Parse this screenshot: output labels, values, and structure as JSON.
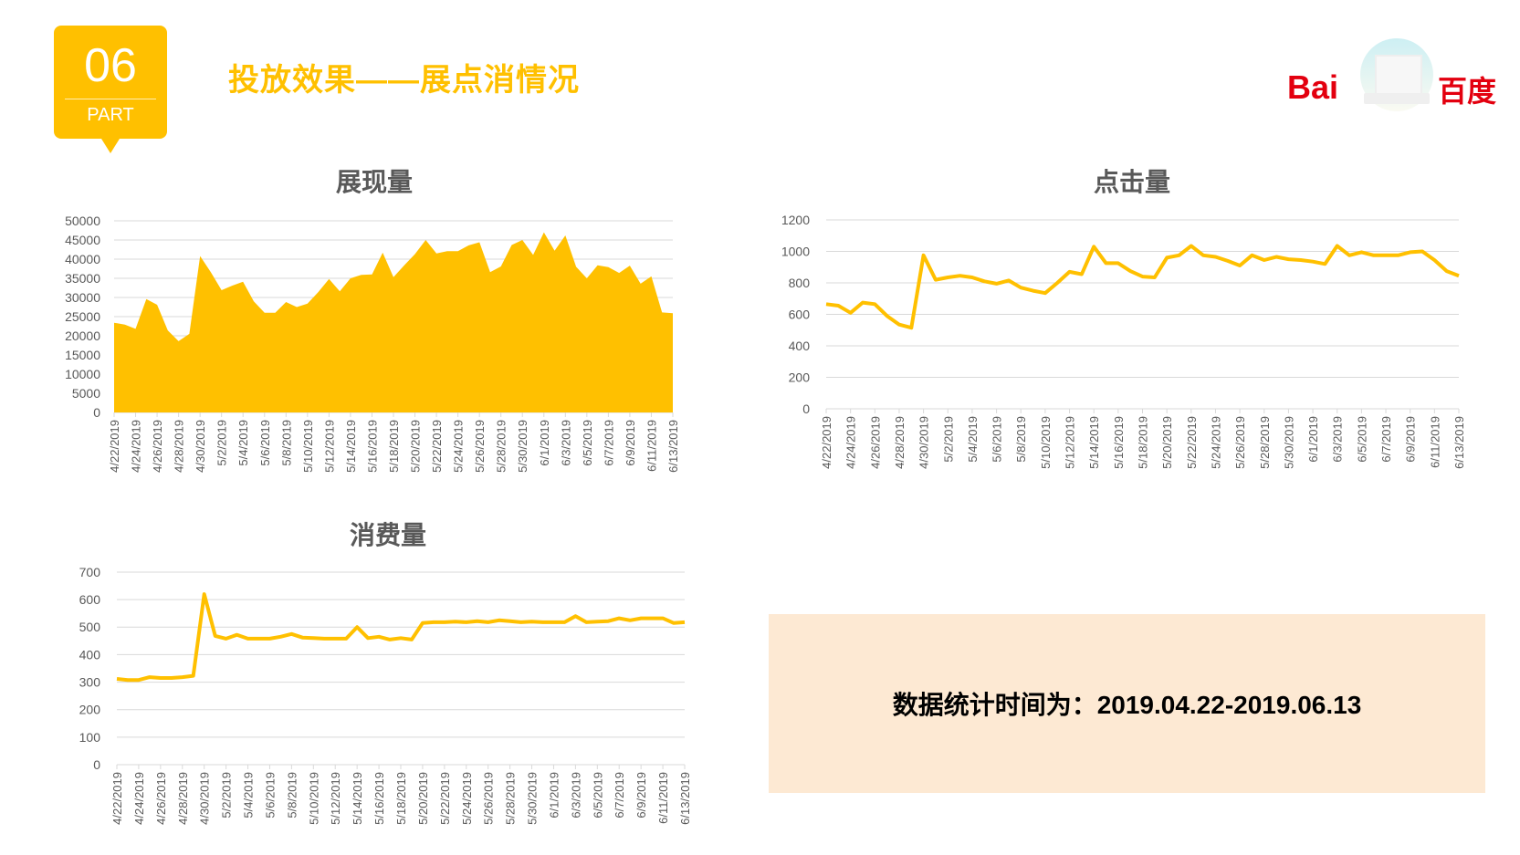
{
  "header": {
    "part_number": "06",
    "part_label": "PART",
    "title": "投放效果——展点消情况",
    "logo_latin": "Bai",
    "logo_chinese": "百度",
    "accent_color": "#FFC000",
    "logo_color": "#E3000F"
  },
  "info_box": {
    "text": "数据统计时间为：2019.04.22-2019.06.13",
    "background": "#FDE9D3"
  },
  "chart_data": [
    {
      "type": "area",
      "title": "展现量",
      "xlabel": "",
      "ylabel": "",
      "ylim": [
        0,
        50000
      ],
      "yticks": [
        0,
        5000,
        10000,
        15000,
        20000,
        25000,
        30000,
        35000,
        40000,
        45000,
        50000
      ],
      "grid": true,
      "color": "#FFC000",
      "x_tick_labels": [
        "4/22/2019",
        "4/24/2019",
        "4/26/2019",
        "4/28/2019",
        "4/30/2019",
        "5/2/2019",
        "5/4/2019",
        "5/6/2019",
        "5/8/2019",
        "5/10/2019",
        "5/12/2019",
        "5/14/2019",
        "5/16/2019",
        "5/18/2019",
        "5/20/2019",
        "5/22/2019",
        "5/24/2019",
        "5/26/2019",
        "5/28/2019",
        "5/30/2019",
        "6/1/2019",
        "6/3/2019",
        "6/5/2019",
        "6/7/2019",
        "6/9/2019",
        "6/11/2019",
        "6/13/2019"
      ],
      "x": [
        "4/22",
        "4/23",
        "4/24",
        "4/25",
        "4/26",
        "4/27",
        "4/28",
        "4/29",
        "4/30",
        "5/1",
        "5/2",
        "5/3",
        "5/4",
        "5/5",
        "5/6",
        "5/7",
        "5/8",
        "5/9",
        "5/10",
        "5/11",
        "5/12",
        "5/13",
        "5/14",
        "5/15",
        "5/16",
        "5/17",
        "5/18",
        "5/19",
        "5/20",
        "5/21",
        "5/22",
        "5/23",
        "5/24",
        "5/25",
        "5/26",
        "5/27",
        "5/28",
        "5/29",
        "5/30",
        "5/31",
        "6/1",
        "6/2",
        "6/3",
        "6/4",
        "6/5",
        "6/6",
        "6/7",
        "6/8",
        "6/9",
        "6/10",
        "6/11",
        "6/12",
        "6/13"
      ],
      "values": [
        23400,
        22900,
        21800,
        29600,
        28100,
        21400,
        18600,
        20500,
        40800,
        36600,
        31900,
        33100,
        34100,
        29000,
        26000,
        26000,
        28800,
        27500,
        28400,
        31400,
        34800,
        31600,
        35000,
        35900,
        36000,
        41700,
        35300,
        38400,
        41300,
        45000,
        41500,
        42100,
        42100,
        43600,
        44400,
        36600,
        38100,
        43700,
        45000,
        41100,
        47000,
        42200,
        46200,
        38000,
        35000,
        38400,
        37900,
        36400,
        38300,
        33600,
        35500,
        26100,
        25900
      ]
    },
    {
      "type": "line",
      "title": "点击量",
      "xlabel": "",
      "ylabel": "",
      "ylim": [
        0,
        1200
      ],
      "yticks": [
        0,
        200,
        400,
        600,
        800,
        1000,
        1200
      ],
      "grid": true,
      "color": "#FFC000",
      "x_tick_labels": [
        "4/22/2019",
        "4/24/2019",
        "4/26/2019",
        "4/28/2019",
        "4/30/2019",
        "5/2/2019",
        "5/4/2019",
        "5/6/2019",
        "5/8/2019",
        "5/10/2019",
        "5/12/2019",
        "5/14/2019",
        "5/16/2019",
        "5/18/2019",
        "5/20/2019",
        "5/22/2019",
        "5/24/2019",
        "5/26/2019",
        "5/28/2019",
        "5/30/2019",
        "6/1/2019",
        "6/3/2019",
        "6/5/2019",
        "6/7/2019",
        "6/9/2019",
        "6/11/2019",
        "6/13/2019"
      ],
      "values": [
        665,
        655,
        610,
        675,
        665,
        590,
        535,
        515,
        975,
        820,
        835,
        845,
        835,
        810,
        795,
        815,
        770,
        750,
        735,
        800,
        870,
        855,
        1030,
        925,
        925,
        875,
        840,
        835,
        960,
        975,
        1035,
        975,
        965,
        940,
        910,
        975,
        945,
        965,
        950,
        945,
        935,
        920,
        1035,
        975,
        995,
        975,
        975,
        975,
        995,
        1000,
        945,
        875,
        845
      ]
    },
    {
      "type": "line",
      "title": "消费量",
      "xlabel": "",
      "ylabel": "",
      "ylim": [
        0,
        700
      ],
      "yticks": [
        0,
        100,
        200,
        300,
        400,
        500,
        600,
        700
      ],
      "grid": true,
      "color": "#FFC000",
      "x_tick_labels": [
        "4/22/2019",
        "4/24/2019",
        "4/26/2019",
        "4/28/2019",
        "4/30/2019",
        "5/2/2019",
        "5/4/2019",
        "5/6/2019",
        "5/8/2019",
        "5/10/2019",
        "5/12/2019",
        "5/14/2019",
        "5/16/2019",
        "5/18/2019",
        "5/20/2019",
        "5/22/2019",
        "5/24/2019",
        "5/26/2019",
        "5/28/2019",
        "5/30/2019",
        "6/1/2019",
        "6/3/2019",
        "6/5/2019",
        "6/7/2019",
        "6/9/2019",
        "6/11/2019",
        "6/13/2019"
      ],
      "values": [
        312,
        308,
        308,
        318,
        315,
        315,
        318,
        323,
        620,
        468,
        458,
        472,
        458,
        458,
        458,
        465,
        475,
        462,
        460,
        458,
        458,
        458,
        500,
        460,
        465,
        455,
        460,
        455,
        515,
        518,
        518,
        520,
        518,
        522,
        518,
        525,
        522,
        518,
        520,
        518,
        518,
        518,
        540,
        518,
        520,
        522,
        532,
        525,
        532,
        532,
        532,
        515,
        518
      ]
    }
  ]
}
